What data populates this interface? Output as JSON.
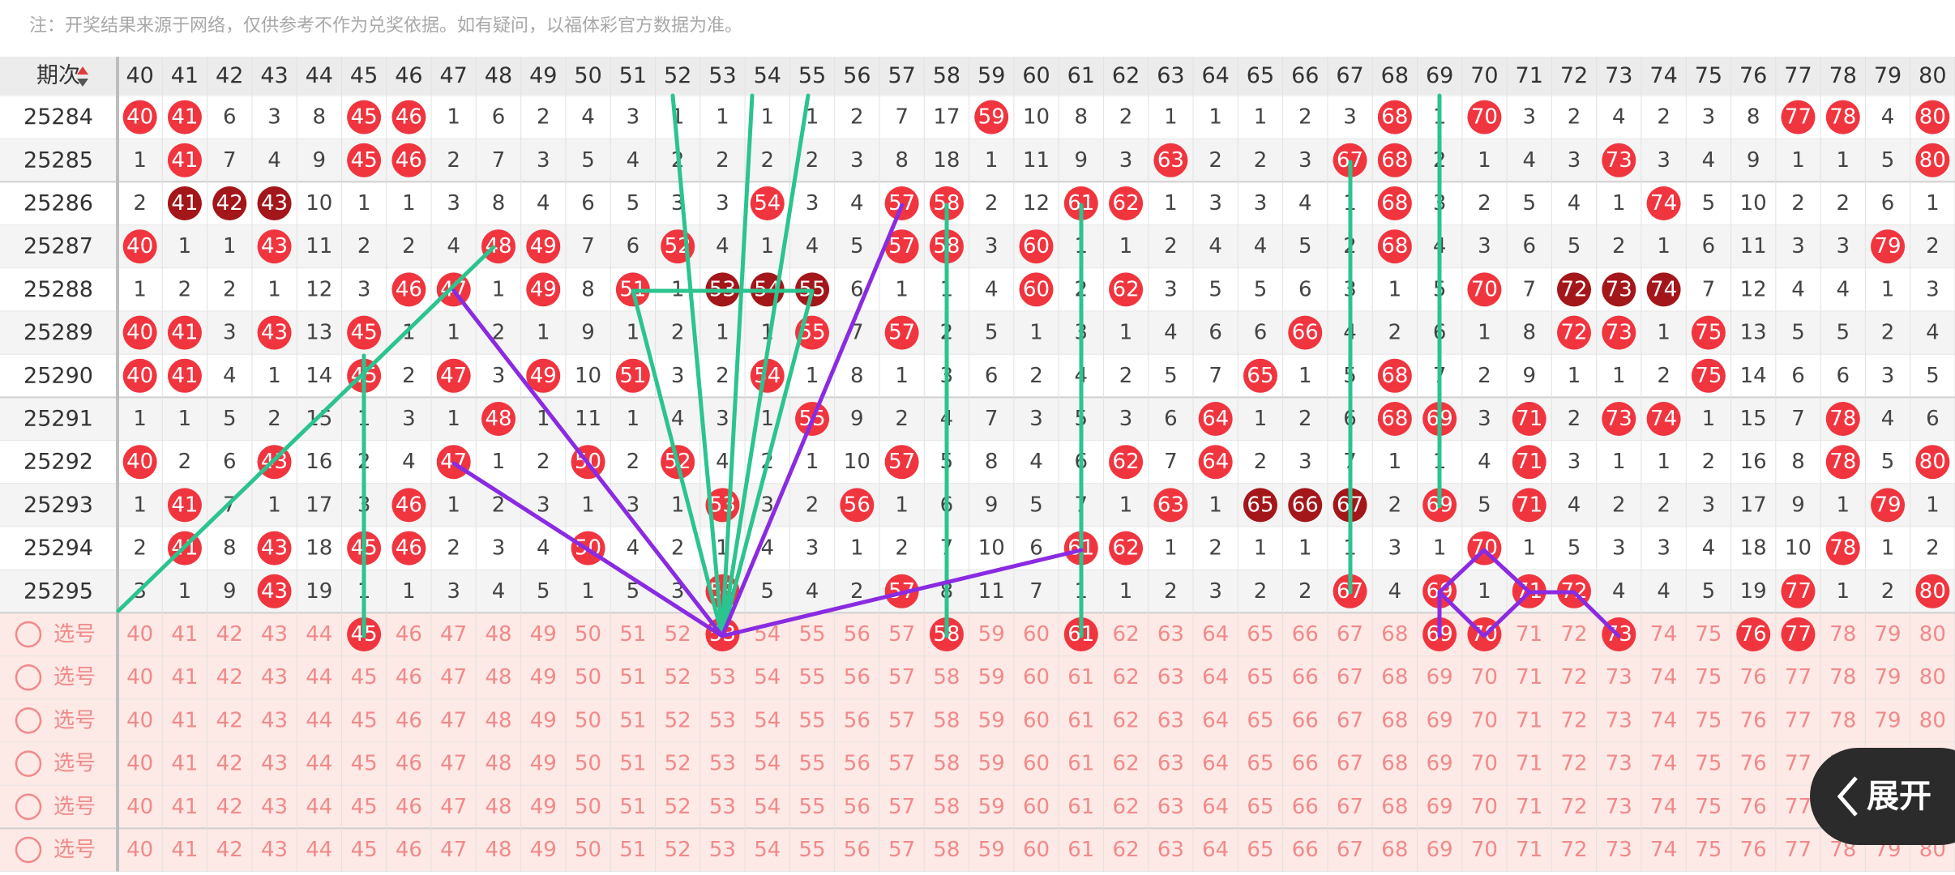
{
  "notice": "注：开奖结果来源于网络，仅供参考不作为兑奖依据。如有疑问，以福体彩官方数据为准。",
  "header": {
    "label": "期次",
    "columns": [
      40,
      41,
      42,
      43,
      44,
      45,
      46,
      47,
      48,
      49,
      50,
      51,
      52,
      53,
      54,
      55,
      56,
      57,
      58,
      59,
      60,
      61,
      62,
      63,
      64,
      65,
      66,
      67,
      68,
      69,
      70,
      71,
      72,
      73,
      74,
      75,
      76,
      77,
      78,
      79,
      80
    ]
  },
  "rows": [
    {
      "period": "25284",
      "cells": [
        40,
        41,
        6,
        3,
        8,
        45,
        46,
        1,
        6,
        2,
        4,
        3,
        1,
        1,
        1,
        1,
        2,
        7,
        17,
        59,
        10,
        8,
        2,
        1,
        1,
        1,
        2,
        3,
        68,
        1,
        70,
        3,
        2,
        4,
        2,
        3,
        8,
        77,
        78,
        4,
        80
      ]
    },
    {
      "period": "25285",
      "cells": [
        1,
        41,
        7,
        4,
        9,
        45,
        46,
        2,
        7,
        3,
        5,
        4,
        2,
        2,
        2,
        2,
        3,
        8,
        18,
        1,
        11,
        9,
        3,
        63,
        2,
        2,
        3,
        67,
        68,
        2,
        1,
        4,
        3,
        73,
        3,
        4,
        9,
        1,
        1,
        5,
        80
      ]
    },
    {
      "period": "25286",
      "cells": [
        2,
        41,
        42,
        43,
        10,
        1,
        1,
        3,
        8,
        4,
        6,
        5,
        3,
        3,
        54,
        3,
        4,
        57,
        58,
        2,
        12,
        61,
        62,
        1,
        3,
        3,
        4,
        1,
        68,
        3,
        2,
        5,
        4,
        1,
        74,
        5,
        10,
        2,
        2,
        6,
        1
      ]
    },
    {
      "period": "25287",
      "cells": [
        40,
        1,
        1,
        43,
        11,
        2,
        2,
        4,
        48,
        49,
        7,
        6,
        52,
        4,
        1,
        4,
        5,
        57,
        58,
        3,
        60,
        1,
        1,
        2,
        4,
        4,
        5,
        2,
        68,
        4,
        3,
        6,
        5,
        2,
        1,
        6,
        11,
        3,
        3,
        79,
        2
      ]
    },
    {
      "period": "25288",
      "cells": [
        1,
        2,
        2,
        1,
        12,
        3,
        46,
        47,
        1,
        49,
        8,
        51,
        1,
        53,
        54,
        55,
        6,
        1,
        1,
        4,
        60,
        2,
        62,
        3,
        5,
        5,
        6,
        3,
        1,
        5,
        70,
        7,
        72,
        73,
        74,
        7,
        12,
        4,
        4,
        1,
        3
      ]
    },
    {
      "period": "25289",
      "cells": [
        40,
        41,
        3,
        43,
        13,
        45,
        1,
        1,
        2,
        1,
        9,
        1,
        2,
        1,
        1,
        55,
        7,
        57,
        2,
        5,
        1,
        3,
        1,
        4,
        6,
        6,
        66,
        4,
        2,
        6,
        1,
        8,
        72,
        73,
        1,
        75,
        13,
        5,
        5,
        2,
        4
      ]
    },
    {
      "period": "25290",
      "cells": [
        40,
        41,
        4,
        1,
        14,
        45,
        2,
        47,
        3,
        49,
        10,
        51,
        3,
        2,
        54,
        1,
        8,
        1,
        3,
        6,
        2,
        4,
        2,
        5,
        7,
        65,
        1,
        5,
        68,
        7,
        2,
        9,
        1,
        1,
        2,
        75,
        14,
        6,
        6,
        3,
        5
      ]
    },
    {
      "period": "25291",
      "cells": [
        1,
        1,
        5,
        2,
        15,
        1,
        3,
        1,
        48,
        1,
        11,
        1,
        4,
        3,
        1,
        55,
        9,
        2,
        4,
        7,
        3,
        5,
        3,
        6,
        64,
        1,
        2,
        6,
        68,
        69,
        3,
        71,
        2,
        73,
        74,
        1,
        15,
        7,
        78,
        4,
        6
      ]
    },
    {
      "period": "25292",
      "cells": [
        40,
        2,
        6,
        43,
        16,
        2,
        4,
        47,
        1,
        2,
        50,
        2,
        52,
        4,
        2,
        1,
        10,
        57,
        5,
        8,
        4,
        6,
        62,
        7,
        64,
        2,
        3,
        7,
        1,
        1,
        4,
        71,
        3,
        1,
        1,
        2,
        16,
        8,
        78,
        5,
        80
      ]
    },
    {
      "period": "25293",
      "cells": [
        1,
        41,
        7,
        1,
        17,
        3,
        46,
        1,
        2,
        3,
        1,
        3,
        1,
        53,
        3,
        2,
        56,
        1,
        6,
        9,
        5,
        7,
        1,
        63,
        1,
        65,
        66,
        67,
        2,
        69,
        5,
        71,
        4,
        2,
        2,
        3,
        17,
        9,
        1,
        79,
        1
      ]
    },
    {
      "period": "25294",
      "cells": [
        2,
        41,
        8,
        43,
        18,
        45,
        46,
        2,
        3,
        4,
        50,
        4,
        2,
        1,
        4,
        3,
        1,
        2,
        7,
        10,
        6,
        61,
        62,
        1,
        2,
        1,
        1,
        1,
        3,
        1,
        70,
        1,
        5,
        3,
        3,
        4,
        18,
        10,
        78,
        1,
        2
      ]
    },
    {
      "period": "25295",
      "cells": [
        3,
        1,
        9,
        43,
        19,
        1,
        1,
        3,
        4,
        5,
        1,
        5,
        3,
        53,
        5,
        4,
        2,
        57,
        8,
        11,
        7,
        1,
        1,
        2,
        3,
        2,
        2,
        67,
        4,
        69,
        1,
        71,
        72,
        4,
        4,
        5,
        19,
        77,
        1,
        2,
        80
      ]
    }
  ],
  "picks": [
    {
      "label": "选号",
      "selected": [
        45,
        53,
        58,
        61,
        69,
        70,
        73,
        76,
        77
      ]
    },
    {
      "label": "选号",
      "selected": []
    },
    {
      "label": "选号",
      "selected": []
    },
    {
      "label": "选号",
      "selected": []
    },
    {
      "label": "选号",
      "selected": []
    },
    {
      "label": "选号",
      "selected": []
    }
  ],
  "expand_button": "展开"
}
